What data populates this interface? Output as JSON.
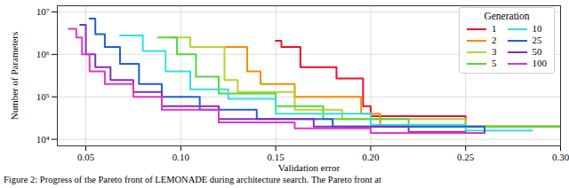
{
  "chart_data": {
    "type": "line",
    "x_label": "Validation error",
    "y_label": "Number of Parameters",
    "caption": "Figure 2: Progress of the Pareto front of LEMONADE during architecture search. The Pareto front at",
    "legend_title": "Generation",
    "legend": "upper right",
    "log": "y",
    "grid": true,
    "line_style": "step",
    "xlim": [
      0.035,
      0.3
    ],
    "xticks": [
      {
        "value": 0.05,
        "label": "0.05"
      },
      {
        "value": 0.1,
        "label": "0.10"
      },
      {
        "value": 0.15,
        "label": "0.15"
      },
      {
        "value": 0.2,
        "label": "0.20"
      },
      {
        "value": 0.25,
        "label": "0.25"
      },
      {
        "value": 0.3,
        "label": "0.30"
      }
    ],
    "ylim": [
      7000,
      14000000
    ],
    "yticks": [
      {
        "value": 10000,
        "label": "10⁴"
      },
      {
        "value": 100000,
        "label": "10⁵"
      },
      {
        "value": 1000000,
        "label": "10⁶"
      },
      {
        "value": 10000000,
        "label": "10⁷"
      }
    ],
    "series": [
      {
        "name": "1",
        "color": "#e8112d",
        "x": [
          0.15,
          0.153,
          0.163,
          0.182,
          0.196,
          0.2,
          0.25,
          0.3
        ],
        "values": [
          2100000,
          1500000,
          500000,
          270000,
          60000,
          35000,
          20000,
          20000
        ]
      },
      {
        "name": "2",
        "color": "#f28e00",
        "x": [
          0.112,
          0.135,
          0.142,
          0.16,
          0.195,
          0.205,
          0.3
        ],
        "values": [
          1500000,
          400000,
          200000,
          100000,
          40000,
          20000,
          20000
        ]
      },
      {
        "name": "3",
        "color": "#b5d334",
        "x": [
          0.095,
          0.105,
          0.123,
          0.13,
          0.16,
          0.185,
          0.25,
          0.3
        ],
        "values": [
          2500000,
          1500000,
          250000,
          130000,
          50000,
          30000,
          20000,
          20000
        ]
      },
      {
        "name": "5",
        "color": "#4fd93a",
        "x": [
          0.088,
          0.098,
          0.108,
          0.12,
          0.15,
          0.175,
          0.22,
          0.3
        ],
        "values": [
          2500000,
          1000000,
          300000,
          120000,
          60000,
          30000,
          20000,
          20000
        ]
      },
      {
        "name": "10",
        "color": "#33e0e0",
        "x": [
          0.068,
          0.08,
          0.092,
          0.105,
          0.125,
          0.15,
          0.2,
          0.25,
          0.285
        ],
        "values": [
          2800000,
          1200000,
          400000,
          150000,
          90000,
          40000,
          22000,
          16000,
          16000
        ]
      },
      {
        "name": "25",
        "color": "#1f5fd6",
        "x": [
          0.052,
          0.055,
          0.06,
          0.068,
          0.078,
          0.09,
          0.11,
          0.14,
          0.18,
          0.26
        ],
        "values": [
          7000000,
          3000000,
          1500000,
          600000,
          200000,
          100000,
          50000,
          30000,
          20000,
          14000
        ]
      },
      {
        "name": "50",
        "color": "#7b2fbf",
        "x": [
          0.047,
          0.05,
          0.055,
          0.063,
          0.075,
          0.09,
          0.12,
          0.17,
          0.22,
          0.25
        ],
        "values": [
          5000000,
          1000000,
          500000,
          250000,
          130000,
          60000,
          30000,
          20000,
          15000,
          15000
        ]
      },
      {
        "name": "100",
        "color": "#e833c6",
        "x": [
          0.041,
          0.045,
          0.048,
          0.052,
          0.06,
          0.075,
          0.09,
          0.12,
          0.16,
          0.2,
          0.26
        ],
        "values": [
          4000000,
          2500000,
          1000000,
          400000,
          200000,
          100000,
          50000,
          25000,
          18000,
          14000,
          14000
        ]
      }
    ]
  }
}
